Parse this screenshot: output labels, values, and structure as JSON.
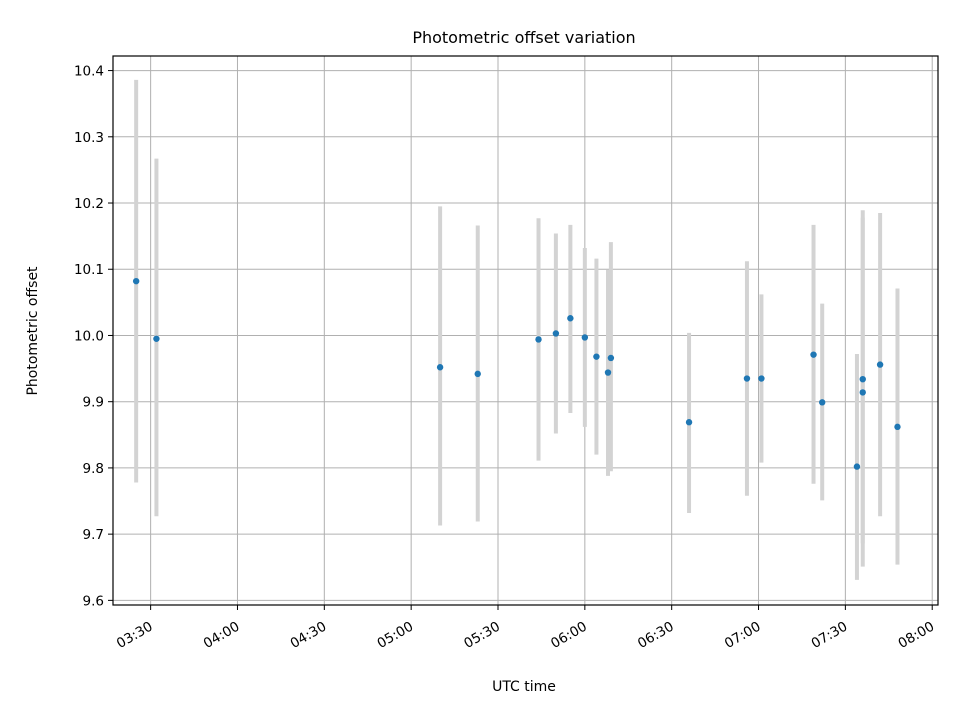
{
  "chart_data": {
    "type": "scatter",
    "title": "Photometric offset variation",
    "xlabel": "UTC time",
    "ylabel": "Photometric offset",
    "x_axis_kind": "time",
    "xlim": [
      "03:17",
      "08:02"
    ],
    "ylim": [
      9.593,
      10.422
    ],
    "grid": true,
    "x_ticks": [
      "03:30",
      "04:00",
      "04:30",
      "05:00",
      "05:30",
      "06:00",
      "06:30",
      "07:00",
      "07:30",
      "08:00"
    ],
    "y_ticks": [
      "9.6",
      "9.7",
      "9.8",
      "9.9",
      "10.0",
      "10.1",
      "10.2",
      "10.3",
      "10.4"
    ],
    "marker_color": "#1f77b4",
    "errorbar_color": "#d3d3d3",
    "points": [
      {
        "t": "03:25",
        "y": 10.082,
        "ylow": 9.778,
        "yhigh": 10.386
      },
      {
        "t": "03:32",
        "y": 9.995,
        "ylow": 9.727,
        "yhigh": 10.267
      },
      {
        "t": "05:10",
        "y": 9.952,
        "ylow": 9.713,
        "yhigh": 10.195
      },
      {
        "t": "05:23",
        "y": 9.942,
        "ylow": 9.719,
        "yhigh": 10.166
      },
      {
        "t": "05:44",
        "y": 9.994,
        "ylow": 9.811,
        "yhigh": 10.177
      },
      {
        "t": "05:50",
        "y": 10.003,
        "ylow": 9.852,
        "yhigh": 10.154
      },
      {
        "t": "05:55",
        "y": 10.026,
        "ylow": 9.883,
        "yhigh": 10.167
      },
      {
        "t": "06:00",
        "y": 9.997,
        "ylow": 9.862,
        "yhigh": 10.132
      },
      {
        "t": "06:04",
        "y": 9.968,
        "ylow": 9.82,
        "yhigh": 10.116
      },
      {
        "t": "06:08",
        "y": 9.944,
        "ylow": 9.788,
        "yhigh": 10.099
      },
      {
        "t": "06:09",
        "y": 9.966,
        "ylow": 9.795,
        "yhigh": 10.141
      },
      {
        "t": "06:36",
        "y": 9.869,
        "ylow": 9.732,
        "yhigh": 10.004
      },
      {
        "t": "06:56",
        "y": 9.935,
        "ylow": 9.758,
        "yhigh": 10.112
      },
      {
        "t": "07:01",
        "y": 9.935,
        "ylow": 9.808,
        "yhigh": 10.062
      },
      {
        "t": "07:19",
        "y": 9.971,
        "ylow": 9.776,
        "yhigh": 10.167
      },
      {
        "t": "07:22",
        "y": 9.899,
        "ylow": 9.751,
        "yhigh": 10.048
      },
      {
        "t": "07:34",
        "y": 9.802,
        "ylow": 9.631,
        "yhigh": 9.972
      },
      {
        "t": "07:36",
        "y": 9.914,
        "ylow": 9.651,
        "yhigh": 10.178
      },
      {
        "t": "07:36",
        "y": 9.934,
        "ylow": 9.686,
        "yhigh": 10.189
      },
      {
        "t": "07:42",
        "y": 9.956,
        "ylow": 9.727,
        "yhigh": 10.185
      },
      {
        "t": "07:48",
        "y": 9.862,
        "ylow": 9.654,
        "yhigh": 10.071
      }
    ]
  }
}
